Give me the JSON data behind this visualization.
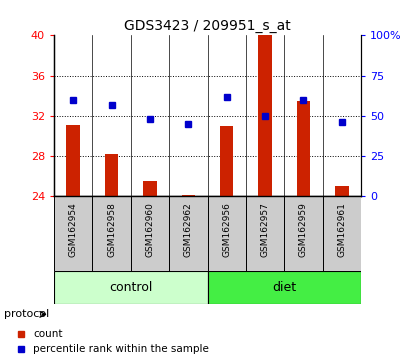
{
  "title": "GDS3423 / 209951_s_at",
  "samples": [
    "GSM162954",
    "GSM162958",
    "GSM162960",
    "GSM162962",
    "GSM162956",
    "GSM162957",
    "GSM162959",
    "GSM162961"
  ],
  "count_values": [
    31.1,
    28.2,
    25.5,
    24.15,
    31.0,
    40.0,
    33.5,
    25.0
  ],
  "percentile_values": [
    60,
    57,
    48,
    45,
    62,
    50,
    60,
    46
  ],
  "count_base": 24.0,
  "ylim_left": [
    24,
    40
  ],
  "ylim_right": [
    0,
    100
  ],
  "yticks_left": [
    24,
    28,
    32,
    36,
    40
  ],
  "yticks_right": [
    0,
    25,
    50,
    75,
    100
  ],
  "ytick_right_labels": [
    "0",
    "25",
    "50",
    "75",
    "100%"
  ],
  "control_color": "#ccffcc",
  "diet_color": "#44ee44",
  "bar_color": "#cc2200",
  "marker_color": "#0000cc",
  "sample_bg_color": "#cccccc",
  "bg_color": "#ffffff",
  "legend_count": "count",
  "legend_percentile": "percentile rank within the sample"
}
